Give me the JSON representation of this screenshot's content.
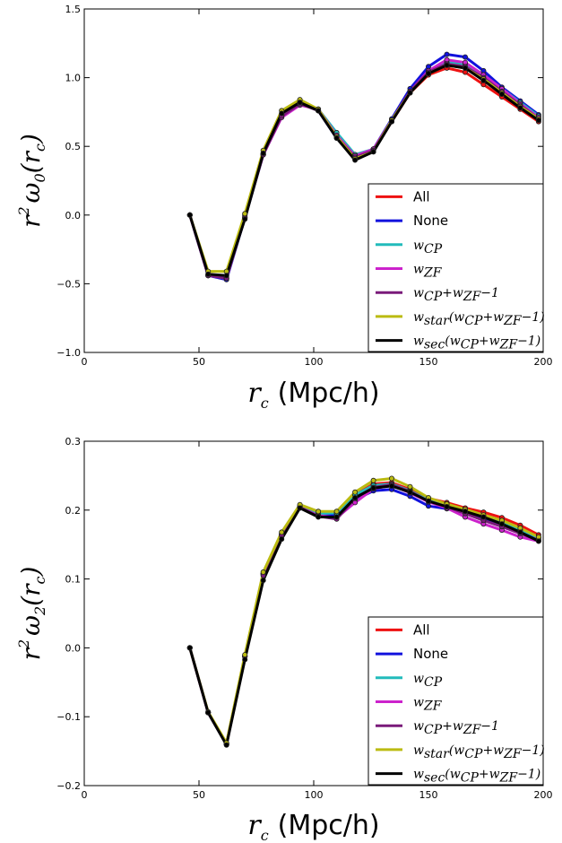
{
  "colors": {
    "All": "#ee1111",
    "None": "#1111dd",
    "w_CP": "#22bbbb",
    "w_ZF": "#cc22cc",
    "w_CP+w_ZF-1": "#7a1a7a",
    "w_star": "#bbbb11",
    "w_sec": "#000000"
  },
  "chart_data": [
    {
      "type": "line",
      "xlabel": {
        "var": "r",
        "sub": "c",
        "unit": "(Mpc/h)"
      },
      "ylabel": {
        "pre": "r",
        "sup": "2",
        "fn": "ω",
        "sub": "0",
        "arg": "(r",
        "argsub": "c",
        "close": ")"
      },
      "xlim": [
        0,
        200
      ],
      "ylim": [
        -1.0,
        1.5
      ],
      "xticks": [
        0,
        50,
        100,
        150,
        200
      ],
      "xtick_labels": [
        "0",
        "50",
        "100",
        "150",
        "200"
      ],
      "yticks": [
        -1.0,
        -0.5,
        0.0,
        0.5,
        1.0,
        1.5
      ],
      "ytick_labels": [
        "−1.0",
        "−0.5",
        "0.0",
        "0.5",
        "1.0",
        "1.5"
      ],
      "legend_position": "lower-right",
      "x": [
        46,
        54,
        62,
        70,
        78,
        86,
        94,
        102,
        110,
        118,
        126,
        134,
        142,
        150,
        158,
        166,
        174,
        182,
        190,
        198
      ],
      "series": [
        {
          "key": "All",
          "label": "All",
          "values": [
            0.0,
            -0.43,
            -0.45,
            0.0,
            0.45,
            0.73,
            0.82,
            0.76,
            0.57,
            0.42,
            0.47,
            0.68,
            0.89,
            1.02,
            1.07,
            1.04,
            0.95,
            0.86,
            0.77,
            0.68
          ]
        },
        {
          "key": "None",
          "label": "None",
          "values": [
            0.0,
            -0.44,
            -0.47,
            -0.02,
            0.44,
            0.72,
            0.82,
            0.76,
            0.56,
            0.42,
            0.48,
            0.7,
            0.92,
            1.08,
            1.17,
            1.15,
            1.05,
            0.93,
            0.83,
            0.73
          ]
        },
        {
          "key": "w_CP",
          "label_base": "w",
          "label_sub": "CP",
          "values": [
            0.0,
            -0.44,
            -0.46,
            -0.02,
            0.44,
            0.72,
            0.81,
            0.77,
            0.6,
            0.44,
            0.48,
            0.69,
            0.9,
            1.04,
            1.11,
            1.1,
            1.02,
            0.92,
            0.82,
            0.72
          ]
        },
        {
          "key": "w_ZF",
          "label_base": "w",
          "label_sub": "ZF",
          "values": [
            0.0,
            -0.44,
            -0.46,
            -0.01,
            0.44,
            0.71,
            0.8,
            0.77,
            0.58,
            0.43,
            0.48,
            0.69,
            0.9,
            1.05,
            1.13,
            1.11,
            1.02,
            0.92,
            0.81,
            0.71
          ]
        },
        {
          "key": "w_CP+w_ZF-1",
          "label_parts": [
            [
              "w",
              "CP"
            ],
            [
              "+w",
              "ZF"
            ],
            [
              "−1",
              ""
            ]
          ],
          "values": [
            0.0,
            -0.44,
            -0.46,
            -0.02,
            0.44,
            0.72,
            0.81,
            0.76,
            0.57,
            0.42,
            0.47,
            0.69,
            0.9,
            1.04,
            1.1,
            1.08,
            1.0,
            0.9,
            0.8,
            0.7
          ]
        },
        {
          "key": "w_star",
          "label_parts": [
            [
              "w",
              "star"
            ],
            [
              "(w",
              "CP"
            ],
            [
              "+w",
              "ZF"
            ],
            [
              "−1)",
              ""
            ]
          ],
          "values": [
            0.0,
            -0.41,
            -0.41,
            0.01,
            0.47,
            0.76,
            0.84,
            0.77,
            0.57,
            0.41,
            0.46,
            0.69,
            0.89,
            1.03,
            1.09,
            1.07,
            0.99,
            0.89,
            0.79,
            0.7
          ]
        },
        {
          "key": "w_sec",
          "label_parts": [
            [
              "w",
              "sec"
            ],
            [
              "(w",
              "CP"
            ],
            [
              "+w",
              "ZF"
            ],
            [
              "−1)",
              ""
            ]
          ],
          "values": [
            0.0,
            -0.43,
            -0.44,
            -0.03,
            0.45,
            0.74,
            0.82,
            0.76,
            0.56,
            0.4,
            0.46,
            0.68,
            0.89,
            1.03,
            1.09,
            1.07,
            0.98,
            0.88,
            0.78,
            0.69
          ]
        }
      ]
    },
    {
      "type": "line",
      "xlabel": {
        "var": "r",
        "sub": "c",
        "unit": "(Mpc/h)"
      },
      "ylabel": {
        "pre": "r",
        "sup": "2",
        "fn": "ω",
        "sub": "2",
        "arg": "(r",
        "argsub": "c",
        "close": ")"
      },
      "xlim": [
        0,
        200
      ],
      "ylim": [
        -0.2,
        0.3
      ],
      "xticks": [
        0,
        50,
        100,
        150,
        200
      ],
      "xtick_labels": [
        "0",
        "50",
        "100",
        "150",
        "200"
      ],
      "yticks": [
        -0.2,
        -0.1,
        0.0,
        0.1,
        0.2,
        0.3
      ],
      "ytick_labels": [
        "−0.2",
        "−0.1",
        "0.0",
        "0.1",
        "0.2",
        "0.3"
      ],
      "legend_position": "lower-right",
      "x": [
        46,
        54,
        62,
        70,
        78,
        86,
        94,
        102,
        110,
        118,
        126,
        134,
        142,
        150,
        158,
        166,
        174,
        182,
        190,
        198
      ],
      "series": [
        {
          "key": "All",
          "label": "All",
          "values": [
            0.0,
            -0.094,
            -0.139,
            -0.012,
            0.108,
            0.165,
            0.205,
            0.195,
            0.195,
            0.222,
            0.238,
            0.24,
            0.23,
            0.217,
            0.211,
            0.203,
            0.197,
            0.189,
            0.178,
            0.164
          ]
        },
        {
          "key": "None",
          "label": "None",
          "values": [
            0.0,
            -0.094,
            -0.14,
            -0.012,
            0.108,
            0.166,
            0.206,
            0.193,
            0.192,
            0.215,
            0.228,
            0.23,
            0.22,
            0.206,
            0.202,
            0.196,
            0.188,
            0.18,
            0.17,
            0.158
          ]
        },
        {
          "key": "w_CP",
          "label_base": "w",
          "label_sub": "CP",
          "values": [
            0.0,
            -0.094,
            -0.14,
            -0.012,
            0.107,
            0.164,
            0.205,
            0.195,
            0.196,
            0.222,
            0.236,
            0.238,
            0.228,
            0.214,
            0.207,
            0.199,
            0.191,
            0.183,
            0.172,
            0.16
          ]
        },
        {
          "key": "w_ZF",
          "label_base": "w",
          "label_sub": "ZF",
          "values": [
            0.0,
            -0.094,
            -0.14,
            -0.012,
            0.107,
            0.164,
            0.204,
            0.192,
            0.189,
            0.211,
            0.231,
            0.236,
            0.225,
            0.212,
            0.203,
            0.19,
            0.18,
            0.171,
            0.161,
            0.155
          ]
        },
        {
          "key": "w_CP+w_ZF-1",
          "label_parts": [
            [
              "w",
              "CP"
            ],
            [
              "+w",
              "ZF"
            ],
            [
              "−1",
              ""
            ]
          ],
          "values": [
            0.0,
            -0.094,
            -0.14,
            -0.013,
            0.105,
            0.163,
            0.204,
            0.191,
            0.187,
            0.217,
            0.233,
            0.237,
            0.227,
            0.213,
            0.205,
            0.195,
            0.185,
            0.176,
            0.166,
            0.156
          ]
        },
        {
          "key": "w_star",
          "label_parts": [
            [
              "w",
              "star"
            ],
            [
              "(w",
              "CP"
            ],
            [
              "+w",
              "ZF"
            ],
            [
              "−1)",
              ""
            ]
          ],
          "values": [
            0.0,
            -0.093,
            -0.138,
            -0.01,
            0.11,
            0.168,
            0.208,
            0.198,
            0.198,
            0.226,
            0.243,
            0.246,
            0.234,
            0.218,
            0.209,
            0.201,
            0.193,
            0.185,
            0.174,
            0.161
          ]
        },
        {
          "key": "w_sec",
          "label_parts": [
            [
              "w",
              "sec"
            ],
            [
              "(w",
              "CP"
            ],
            [
              "+w",
              "ZF"
            ],
            [
              "−1)",
              ""
            ]
          ],
          "values": [
            0.0,
            -0.094,
            -0.141,
            -0.017,
            0.098,
            0.158,
            0.203,
            0.19,
            0.19,
            0.218,
            0.232,
            0.235,
            0.226,
            0.213,
            0.205,
            0.198,
            0.19,
            0.18,
            0.168,
            0.155
          ]
        }
      ]
    }
  ]
}
